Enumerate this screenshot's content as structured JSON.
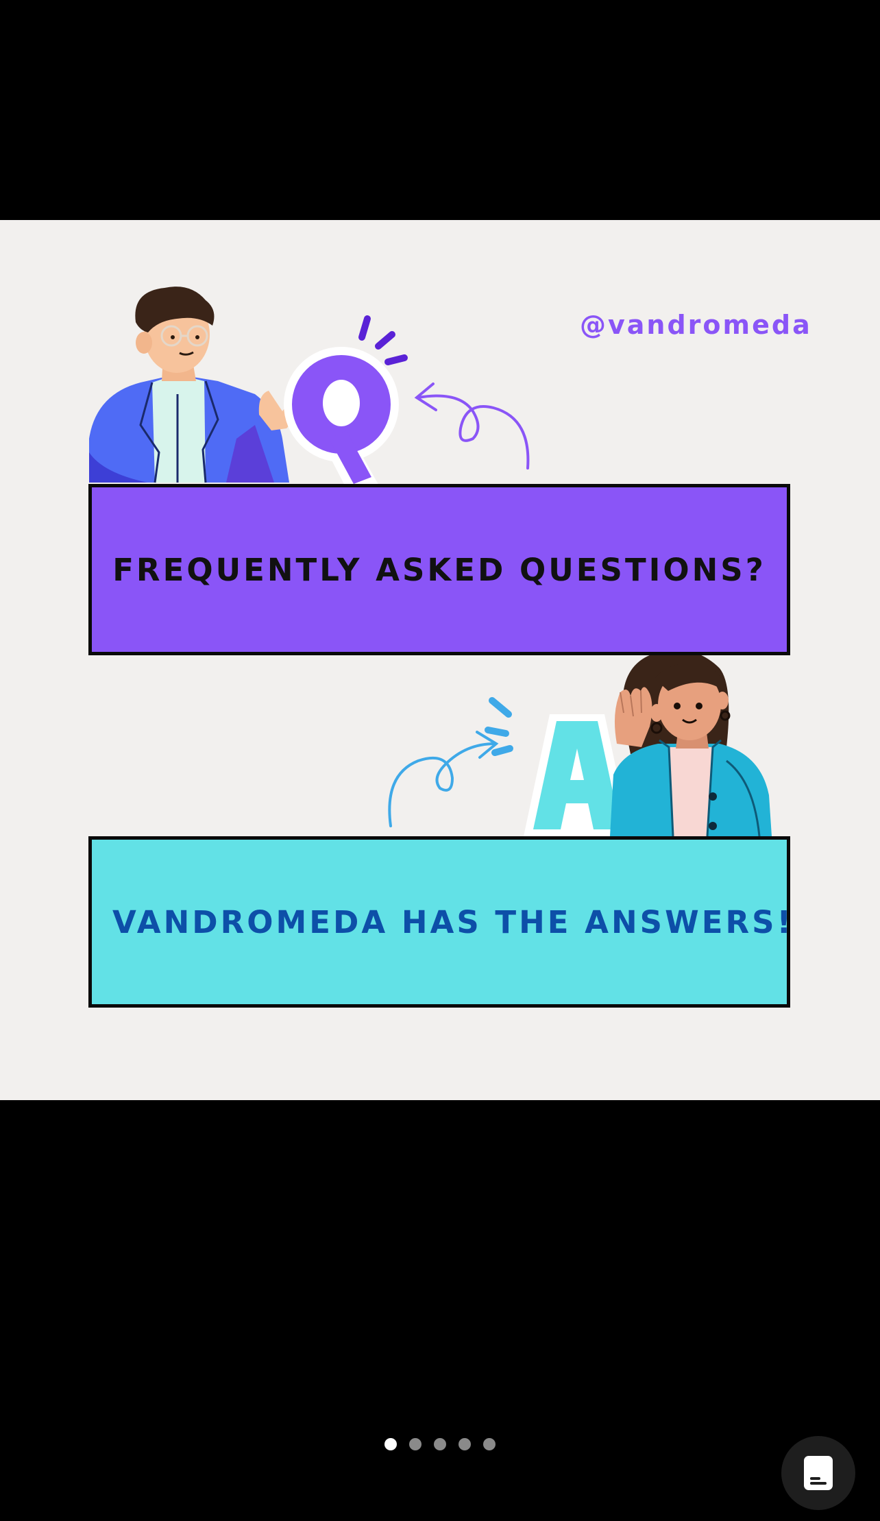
{
  "slide": {
    "handle": "@vandromeda",
    "question_letter": "Q",
    "answer_letter": "A",
    "question_banner": "FREQUENTLY ASKED QUESTIONS?",
    "answer_banner": "VANDROMEDA HAS THE ANSWERS!"
  },
  "carousel": {
    "total_slides": 5,
    "current_slide": 1
  },
  "icons": {
    "reader_button": "document-icon"
  },
  "colors": {
    "background": "#000000",
    "slide_background": "#F2F0EE",
    "purple": "#8A55F7",
    "cyan": "#62E1E6",
    "answer_text": "#0D4FA8",
    "border": "#0A0A0A"
  }
}
